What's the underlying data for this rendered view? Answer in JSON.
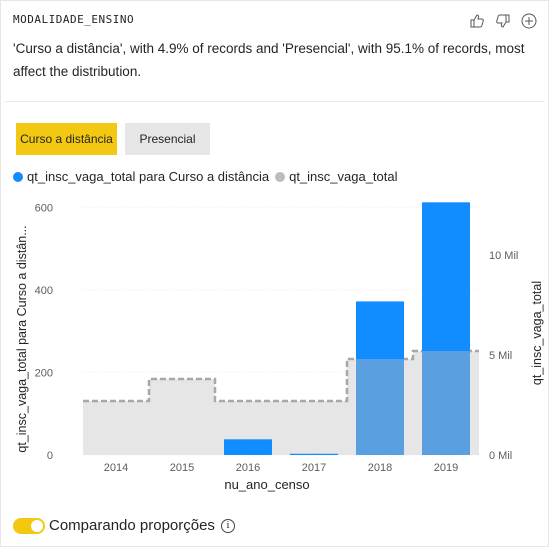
{
  "card": {
    "field_label": "MODALIDADE_ENSINO",
    "description": "'Curso a distância', with 4.9% of records and 'Presencial', with 95.1% of records, most affect the distribution.",
    "feedback_icons": [
      "thumbs-up-icon",
      "thumbs-down-icon",
      "add-icon"
    ]
  },
  "segments": [
    {
      "label": "Curso a distância",
      "selected": true
    },
    {
      "label": "Presencial",
      "selected": false
    }
  ],
  "colors": {
    "accent": "#f2c811",
    "series_primary": "#118dff",
    "series_primary_faded": "#5aa0e0",
    "series_total": "#e6e6e6",
    "series_total_dot": "#bdbdbd",
    "dash_line": "#a8a8a8"
  },
  "legend": [
    {
      "label": "qt_insc_vaga_total para Curso a distância",
      "color": "#118dff"
    },
    {
      "label": "qt_insc_vaga_total",
      "color": "#bdbdbd"
    }
  ],
  "chart_data": {
    "type": "bar",
    "xlabel": "nu_ano_censo",
    "ylabel_left": "qt_insc_vaga_total para Curso a distân...",
    "ylabel_right": "qt_insc_vaga_total",
    "categories": [
      "2014",
      "2015",
      "2016",
      "2017",
      "2018",
      "2019"
    ],
    "left_ticks": [
      "0",
      "200",
      "400",
      "600"
    ],
    "right_ticks": [
      "0 Mil",
      "5 Mil",
      "10 Mil"
    ],
    "ylim_left": [
      0,
      620
    ],
    "ylim_right": [
      0,
      12800
    ],
    "series": [
      {
        "name": "qt_insc_vaga_total para Curso a distância",
        "axis": "left",
        "values": [
          0,
          0,
          38,
          3,
          372,
          612
        ]
      },
      {
        "name": "qt_insc_vaga_total",
        "axis": "right",
        "values": [
          2700,
          3800,
          2700,
          2700,
          4800,
          5200
        ]
      }
    ]
  },
  "footer": {
    "toggle_label": "Comparando proporções",
    "toggle_on": true,
    "info_glyph": "i"
  }
}
